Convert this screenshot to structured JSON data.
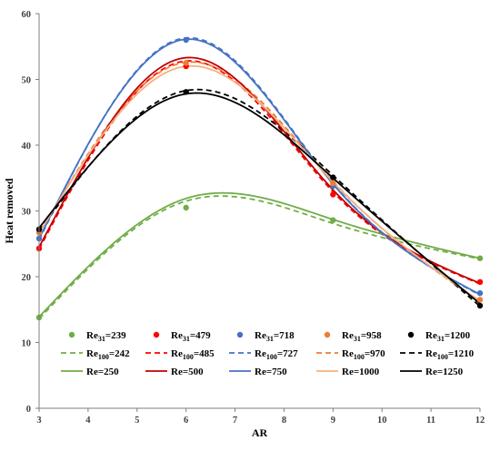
{
  "chart_data": {
    "type": "scatter",
    "xlabel": "AR",
    "ylabel": "Heat removed",
    "xlim": [
      3,
      12
    ],
    "ylim": [
      0,
      60
    ],
    "xticks": [
      3,
      4,
      5,
      6,
      7,
      8,
      9,
      10,
      11,
      12
    ],
    "yticks": [
      0,
      10,
      20,
      30,
      40,
      50,
      60
    ],
    "grid": false,
    "legend_position": "bottom, inside plot",
    "series": [
      {
        "name": "Re31=239",
        "name_main": "Re",
        "name_sub": "31",
        "name_rest": "=239",
        "style": "markers",
        "color": "#70ad47",
        "x": [
          3,
          6,
          9,
          12
        ],
        "y": [
          13.8,
          30.5,
          28.6,
          22.8
        ]
      },
      {
        "name": "Re31=479",
        "name_main": "Re",
        "name_sub": "31",
        "name_rest": "=479",
        "style": "markers",
        "color": "#ff0000",
        "x": [
          3,
          6,
          9,
          12
        ],
        "y": [
          24.3,
          52.0,
          32.5,
          19.2
        ]
      },
      {
        "name": "Re31=718",
        "name_main": "Re",
        "name_sub": "31",
        "name_rest": "=718",
        "style": "markers",
        "color": "#4472c4",
        "x": [
          3,
          6,
          9,
          12
        ],
        "y": [
          25.8,
          56.0,
          33.8,
          17.5
        ]
      },
      {
        "name": "Re31=958",
        "name_main": "Re",
        "name_sub": "31",
        "name_rest": "=958",
        "style": "markers",
        "color": "#ed7d31",
        "x": [
          3,
          6,
          9,
          12
        ],
        "y": [
          26.7,
          52.5,
          34.2,
          16.5
        ]
      },
      {
        "name": "Re31=1200",
        "name_main": "Re",
        "name_sub": "31",
        "name_rest": "=1200",
        "style": "markers",
        "color": "#000000",
        "x": [
          3,
          6,
          9,
          12
        ],
        "y": [
          27.2,
          48.1,
          35.1,
          15.6
        ]
      },
      {
        "name": "Re100=242",
        "name_main": "Re",
        "name_sub": "100",
        "name_rest": "=242",
        "style": "dashed",
        "color": "#70ad47",
        "x": [
          3,
          6,
          9,
          12
        ],
        "y": [
          13.6,
          31.5,
          28.1,
          22.7
        ]
      },
      {
        "name": "Re100=485",
        "name_main": "Re",
        "name_sub": "100",
        "name_rest": "=485",
        "style": "dashed",
        "color": "#ff0000",
        "x": [
          3,
          6,
          9,
          12
        ],
        "y": [
          24.2,
          52.8,
          32.9,
          18.9
        ]
      },
      {
        "name": "Re100=727",
        "name_main": "Re",
        "name_sub": "100",
        "name_rest": "=727",
        "style": "dashed",
        "color": "#4472c4",
        "x": [
          3,
          6,
          9,
          12
        ],
        "y": [
          25.6,
          56.3,
          34.2,
          17.2
        ]
      },
      {
        "name": "Re100=970",
        "name_main": "Re",
        "name_sub": "100",
        "name_rest": "=970",
        "style": "dashed",
        "color": "#ed7d31",
        "x": [
          3,
          6,
          9,
          12
        ],
        "y": [
          26.5,
          52.6,
          34.5,
          16.2
        ]
      },
      {
        "name": "Re100=1210",
        "name_main": "Re",
        "name_sub": "100",
        "name_rest": "=1210",
        "style": "dashed",
        "color": "#000000",
        "x": [
          3,
          6,
          9,
          12
        ],
        "y": [
          27.0,
          48.3,
          35.4,
          15.5
        ]
      },
      {
        "name": "Re=250",
        "name_main": "Re",
        "name_sub": "",
        "name_rest": "=250",
        "style": "solid",
        "color": "#70ad47",
        "x": [
          3,
          6,
          9,
          12
        ],
        "y": [
          13.9,
          31.9,
          28.7,
          22.8
        ]
      },
      {
        "name": "Re=500",
        "name_main": "Re",
        "name_sub": "",
        "name_rest": "=500",
        "style": "solid",
        "color": "#c00000",
        "x": [
          3,
          6,
          9,
          12
        ],
        "y": [
          24.5,
          53.3,
          33.2,
          19.0
        ]
      },
      {
        "name": "Re=750",
        "name_main": "Re",
        "name_sub": "",
        "name_rest": "=750",
        "style": "solid",
        "color": "#4472c4",
        "x": [
          3,
          6,
          9,
          12
        ],
        "y": [
          25.8,
          56.1,
          34.1,
          17.3
        ]
      },
      {
        "name": "Re=1000",
        "name_main": "Re",
        "name_sub": "",
        "name_rest": "=1000",
        "style": "solid",
        "color": "#f4b183",
        "x": [
          3,
          6,
          9,
          12
        ],
        "y": [
          26.6,
          52.0,
          34.4,
          16.3
        ]
      },
      {
        "name": "Re=1250",
        "name_main": "Re",
        "name_sub": "",
        "name_rest": "=1250",
        "style": "solid",
        "color": "#000000",
        "x": [
          3,
          6,
          9,
          12
        ],
        "y": [
          27.4,
          47.8,
          35.0,
          15.9
        ]
      }
    ]
  }
}
